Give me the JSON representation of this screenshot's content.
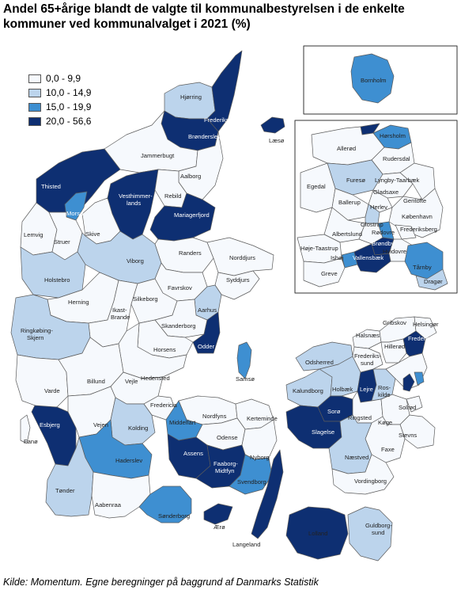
{
  "title": "Andel 65+årige blandt de valgte til kommunalbestyrelsen i de enkelte kommuner ved kommunalvalget i 2021 (%)",
  "source": "Kilde: Momentum. Egne beregninger på baggrund af Danmarks Statistik",
  "colors": {
    "c0": "#f6f9fd",
    "c1": "#bcd4ec",
    "c2": "#3e8fd1",
    "c3": "#0e2f72",
    "border": "#5b5b5b"
  },
  "legend": [
    {
      "label": "0,0 - 9,9",
      "color": "#f6f9fd"
    },
    {
      "label": "10,0 - 14,9",
      "color": "#bcd4ec"
    },
    {
      "label": "15,0 - 19,9",
      "color": "#3e8fd1"
    },
    {
      "label": "20,0 - 56,6",
      "color": "#0e2f72"
    }
  ],
  "municipality_labels": [
    "Hjørring",
    "Frederikshavn",
    "Læsø",
    "Brønderslev",
    "Jammerbugt",
    "Aalborg",
    "Thisted",
    "Vesthimmer-\nlands",
    "Morsø",
    "Rebild",
    "Mariagerfjord",
    "Skive",
    "Lemvig",
    "Struer",
    "Viborg",
    "Randers",
    "Norddjurs",
    "Holstebro",
    "Syddjurs",
    "Favrskov",
    "Herning",
    "Ikast-\nBrande",
    "Silkeborg",
    "Aarhus",
    "Ringkøbing-\nSkjern",
    "Skanderborg",
    "Odder",
    "Horsens",
    "Hedensted",
    "Samsø",
    "Billund",
    "Vejle",
    "Varde",
    "Fredericia",
    "Nordfyns",
    "Kerteminde",
    "Middelfart",
    "Kolding",
    "Vejen",
    "Esbjerg",
    "Fanø",
    "Odense",
    "Assens",
    "Nyborg",
    "Faaborg-\nMidtfyn",
    "Haderslev",
    "Svendborg",
    "Tønder",
    "Aabenraa",
    "Sønderborg",
    "Ærø",
    "Langeland",
    "Lolland",
    "Guldborg-\nsund",
    "Vordingborg",
    "Næstved",
    "Faxe",
    "Stevns",
    "Køge",
    "Solrød",
    "Ringsted",
    "Sorø",
    "Slagelse",
    "Kalundborg",
    "Holbæk",
    "Odsherred",
    "Lejre",
    "Ros-\nkilde",
    "Halsnæs",
    "Frederiks-\nsund",
    "Hillerød",
    "Gribskov",
    "Helsingør",
    "Fredensborg",
    "Bornholm",
    "Hørsholm",
    "Allerød",
    "Rudersdal",
    "Furesø",
    "Egedal",
    "Lyngby-Taarbæk",
    "Gladsaxe",
    "Ballerup",
    "Gentofte",
    "Herlev",
    "København",
    "Glostrup",
    "Rødovre",
    "Frederiksberg",
    "Albertslund",
    "Høje-Taastrup",
    "Brøndby",
    "Ishøj",
    "Vallensbæk",
    "Hvidovre",
    "Tårnby",
    "Greve",
    "Dragør"
  ]
}
